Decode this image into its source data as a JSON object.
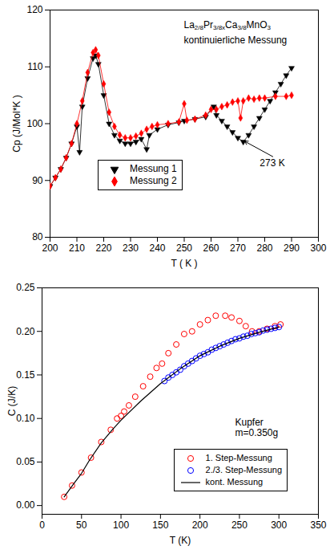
{
  "chart_data": [
    {
      "type": "line",
      "x_label": "T ( K )",
      "y_label": "Cp (J/Mol*K )",
      "xlim": [
        200,
        300
      ],
      "xticks": [
        200,
        210,
        220,
        230,
        240,
        250,
        260,
        270,
        280,
        290,
        300
      ],
      "ylim": [
        80,
        120
      ],
      "yticks": [
        80,
        90,
        100,
        110,
        120
      ],
      "grid": false,
      "legend": "lower left",
      "annotations": [
        {
          "text": "La2/8Pr3/8xCa3/8MnO3",
          "x": 250,
          "y": 117.2
        },
        {
          "text": "kontinuierliche Messung",
          "x": 250,
          "y": 114.6
        },
        {
          "text": "273 K",
          "x": 283,
          "y": 94.2,
          "arrow_to": [
            272.5,
            96.9
          ]
        }
      ],
      "series": [
        {
          "name": "Messung 1",
          "color": "#000000",
          "marker": "triangle-down",
          "x": [
            200,
            202,
            204,
            206,
            208,
            210,
            211,
            212,
            214,
            216,
            217,
            218,
            220,
            222,
            224,
            226,
            228,
            230,
            232,
            234,
            236,
            237,
            240,
            244,
            248,
            250,
            254,
            258,
            261,
            262,
            264,
            266,
            268,
            270,
            272,
            274,
            276,
            278,
            280,
            282,
            284,
            286,
            288,
            290
          ],
          "values": [
            89,
            90.5,
            92,
            94,
            96.5,
            99.5,
            95,
            103,
            108,
            111.5,
            112,
            110.5,
            105,
            100,
            98,
            97,
            96.5,
            96.5,
            96.8,
            97.3,
            95.5,
            98,
            99,
            99.8,
            100.2,
            100.5,
            100.8,
            101.2,
            103,
            101.5,
            100.5,
            99.5,
            98.5,
            97.5,
            96.8,
            98,
            99.5,
            101,
            102.5,
            104,
            105.5,
            107,
            108.5,
            109.8
          ]
        },
        {
          "name": "Messung 2",
          "color": "#ff0000",
          "marker": "diamond",
          "x": [
            200,
            202,
            204,
            206,
            208,
            210,
            212,
            214,
            216,
            217,
            218,
            220,
            222,
            224,
            226,
            228,
            230,
            232,
            234,
            236,
            238,
            240,
            244,
            248,
            250,
            251,
            254,
            258,
            260,
            262,
            264,
            266,
            268,
            270,
            271,
            272,
            274,
            276,
            278,
            280,
            284,
            288,
            290
          ],
          "values": [
            89,
            90.5,
            92,
            94,
            96.5,
            100,
            104,
            109,
            112.5,
            113,
            112,
            107,
            102,
            99.5,
            98,
            97.5,
            97.5,
            97.8,
            98.3,
            99,
            99.5,
            99.8,
            100,
            100.3,
            103.5,
            100.6,
            100.8,
            101.5,
            102.5,
            102.5,
            103,
            103.3,
            103.8,
            104,
            101,
            104,
            104.5,
            104.3,
            104.5,
            104.5,
            104.8,
            104.8,
            105
          ]
        }
      ]
    },
    {
      "type": "scatter",
      "x_label": "T (K)",
      "y_label": "C (J/K)",
      "xlim": [
        0,
        350
      ],
      "xticks": [
        0,
        50,
        100,
        150,
        200,
        250,
        300,
        350
      ],
      "ylim": [
        -0.01,
        0.25
      ],
      "yticks": [
        {
          "value": 0,
          "label": "0.00"
        },
        {
          "value": 0.05,
          "label": "0.05"
        },
        {
          "value": 0.1,
          "label": "0.10"
        },
        {
          "value": 0.15,
          "label": "0.15"
        },
        {
          "value": 0.2,
          "label": "0.20"
        },
        {
          "value": 0.25,
          "label": "0.25"
        }
      ],
      "grid": false,
      "legend": "lower right",
      "annotations": [
        {
          "text": "Kupfer",
          "x": 245,
          "y": 0.095
        },
        {
          "text": "m=0.350g",
          "x": 245,
          "y": 0.083
        }
      ],
      "series": [
        {
          "name": "1. Step-Messung",
          "color": "#ff0000",
          "marker": "circle-open",
          "x": [
            28,
            38,
            50,
            62,
            75,
            87,
            95,
            100,
            104,
            110,
            118,
            128,
            137,
            145,
            152,
            160,
            170,
            180,
            190,
            200,
            210,
            220,
            232,
            240,
            250,
            258,
            266,
            275,
            285,
            295,
            302
          ],
          "values": [
            0.01,
            0.023,
            0.038,
            0.055,
            0.073,
            0.087,
            0.1,
            0.103,
            0.108,
            0.115,
            0.125,
            0.137,
            0.148,
            0.158,
            0.163,
            0.175,
            0.185,
            0.197,
            0.2,
            0.208,
            0.213,
            0.218,
            0.218,
            0.216,
            0.212,
            0.206,
            0.2,
            0.2,
            0.203,
            0.206,
            0.208
          ]
        },
        {
          "name": "2./3. Step-Messung",
          "color": "#0000ff",
          "marker": "circle-open",
          "x": [
            155,
            160,
            165,
            170,
            175,
            180,
            185,
            190,
            195,
            200,
            205,
            210,
            215,
            220,
            225,
            230,
            235,
            240,
            245,
            250,
            255,
            260,
            265,
            270,
            275,
            280,
            285,
            290,
            295,
            300
          ],
          "values": [
            0.143,
            0.147,
            0.15,
            0.153,
            0.156,
            0.16,
            0.163,
            0.166,
            0.169,
            0.172,
            0.174,
            0.176,
            0.179,
            0.181,
            0.183,
            0.185,
            0.187,
            0.189,
            0.191,
            0.192,
            0.194,
            0.195,
            0.197,
            0.198,
            0.199,
            0.201,
            0.202,
            0.203,
            0.204,
            0.205
          ]
        },
        {
          "name": "kont. Messung",
          "color": "#000000",
          "type": "line",
          "line_style": "solid",
          "x": [
            28,
            40,
            50,
            60,
            75,
            90,
            100,
            125,
            150,
            175,
            200,
            225,
            250,
            275,
            300
          ],
          "values": [
            0.01,
            0.025,
            0.037,
            0.052,
            0.072,
            0.088,
            0.098,
            0.12,
            0.14,
            0.157,
            0.172,
            0.183,
            0.192,
            0.199,
            0.205
          ]
        }
      ]
    }
  ]
}
